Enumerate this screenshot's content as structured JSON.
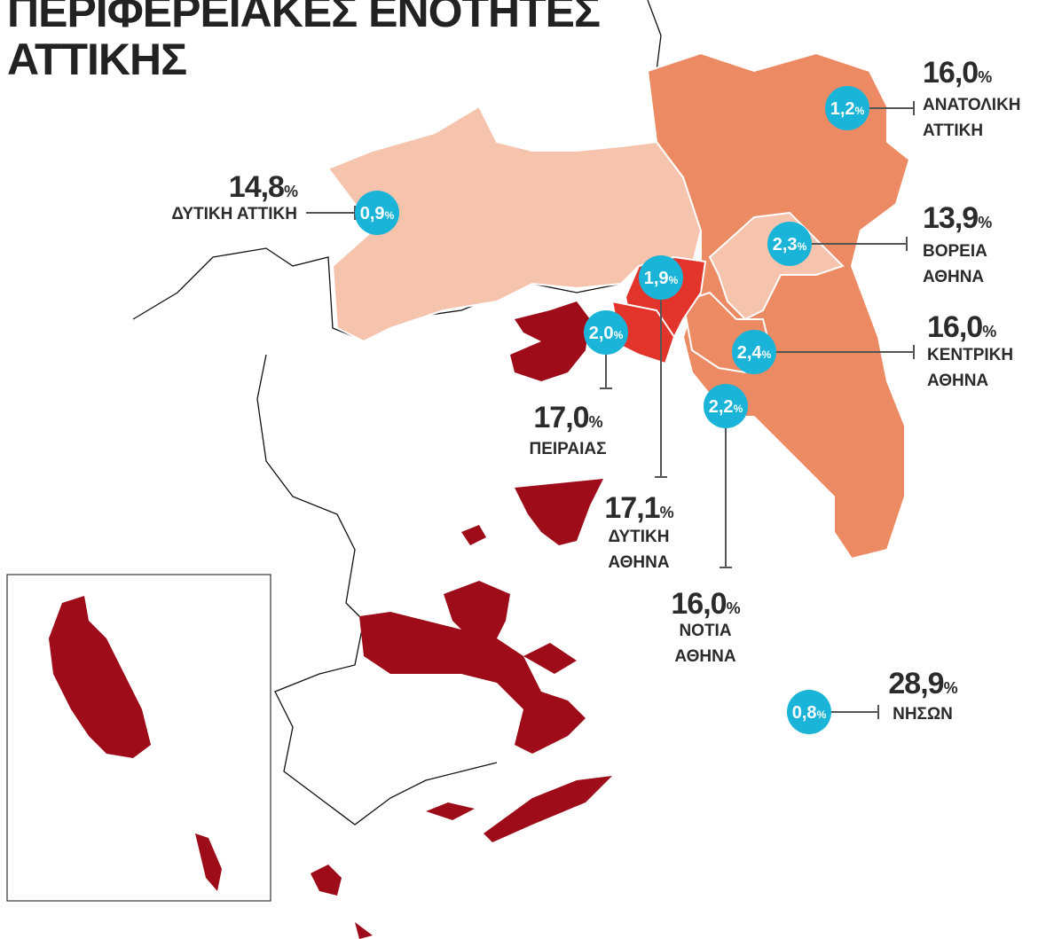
{
  "header": {
    "title_lines": [
      "ΠΕΡΙΦΕΡΕΙΑΚΕΣ ΕΝΟΤΗΤΕΣ",
      "ΑΤΤΙΚΗΣ"
    ]
  },
  "unit": "%",
  "regions": [
    {
      "name_lines": [
        "ΑΝΑΤΟΛΙΚΗ",
        "ΑΤΤΙΚΗ"
      ],
      "share": "16,0",
      "bubble": "1,2"
    },
    {
      "name_lines": [
        "ΔΥΤΙΚΗ ΑΤΤΙΚΗ"
      ],
      "share": "14,8",
      "bubble": "0,9"
    },
    {
      "name_lines": [
        "ΒΟΡΕΙΑ",
        "ΑΘΗΝΑ"
      ],
      "share": "13,9",
      "bubble": "2,3"
    },
    {
      "name_lines": [
        "ΚΕΝΤΡΙΚΗ",
        "ΑΘΗΝΑ"
      ],
      "share": "16,0",
      "bubble": "2,4"
    },
    {
      "name_lines": [
        "ΠΕΙΡΑΙΑΣ"
      ],
      "share": "17,0",
      "bubble": "2,0"
    },
    {
      "name_lines": [
        "ΔΥΤΙΚΗ",
        "ΑΘΗΝΑ"
      ],
      "share": "17,1",
      "bubble": "1,9"
    },
    {
      "name_lines": [
        "ΝΟΤΙΑ",
        "ΑΘΗΝΑ"
      ],
      "share": "16,0",
      "bubble": "2,2"
    },
    {
      "name_lines": [
        "ΝΗΣΩΝ"
      ],
      "share": "28,9",
      "bubble": "0,8"
    }
  ]
}
